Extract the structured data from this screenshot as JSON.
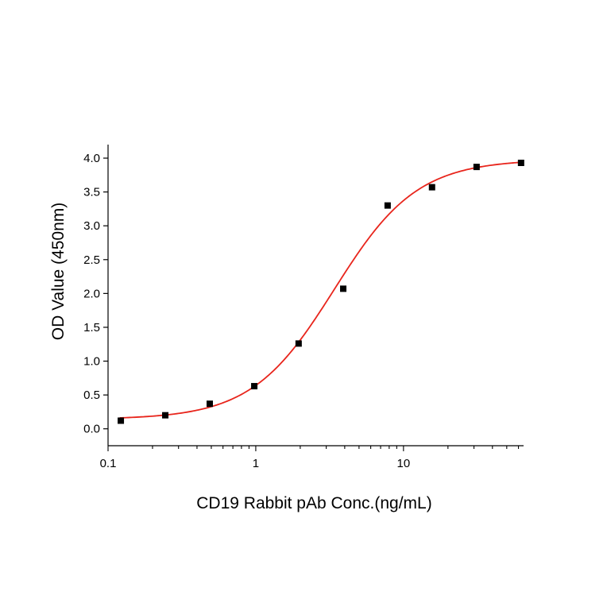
{
  "chart_data": {
    "type": "scatter",
    "title": "",
    "xlabel": "CD19 Rabbit pAb Conc.(ng/mL)",
    "ylabel": "OD Value (450nm)",
    "x_scale": "log",
    "xlim": [
      0.1,
      65
    ],
    "ylim": [
      -0.25,
      4.2
    ],
    "x_ticks": [
      0.1,
      1,
      10
    ],
    "x_tick_labels": [
      "0.1",
      "1",
      "10"
    ],
    "y_ticks": [
      0.0,
      0.5,
      1.0,
      1.5,
      2.0,
      2.5,
      3.0,
      3.5,
      4.0
    ],
    "y_tick_labels": [
      "0.0",
      "0.5",
      "1.0",
      "1.5",
      "2.0",
      "2.5",
      "3.0",
      "3.5",
      "4.0"
    ],
    "grid": false,
    "legend": "none",
    "series": [
      {
        "type": "scatter",
        "marker": "square",
        "color": "#000000",
        "x": [
          0.122,
          0.244,
          0.488,
          0.977,
          1.95,
          3.91,
          7.81,
          15.6,
          31.25,
          62.5
        ],
        "y": [
          0.12,
          0.2,
          0.37,
          0.63,
          1.26,
          2.07,
          3.3,
          3.57,
          3.87,
          3.93
        ]
      },
      {
        "type": "line",
        "fit": "4PL",
        "color": "#e8251c",
        "params": {
          "bottom": 0.14,
          "top": 3.98,
          "ec50": 3.4,
          "hill": 1.55
        },
        "x_range": [
          0.12,
          62.5
        ]
      }
    ]
  }
}
